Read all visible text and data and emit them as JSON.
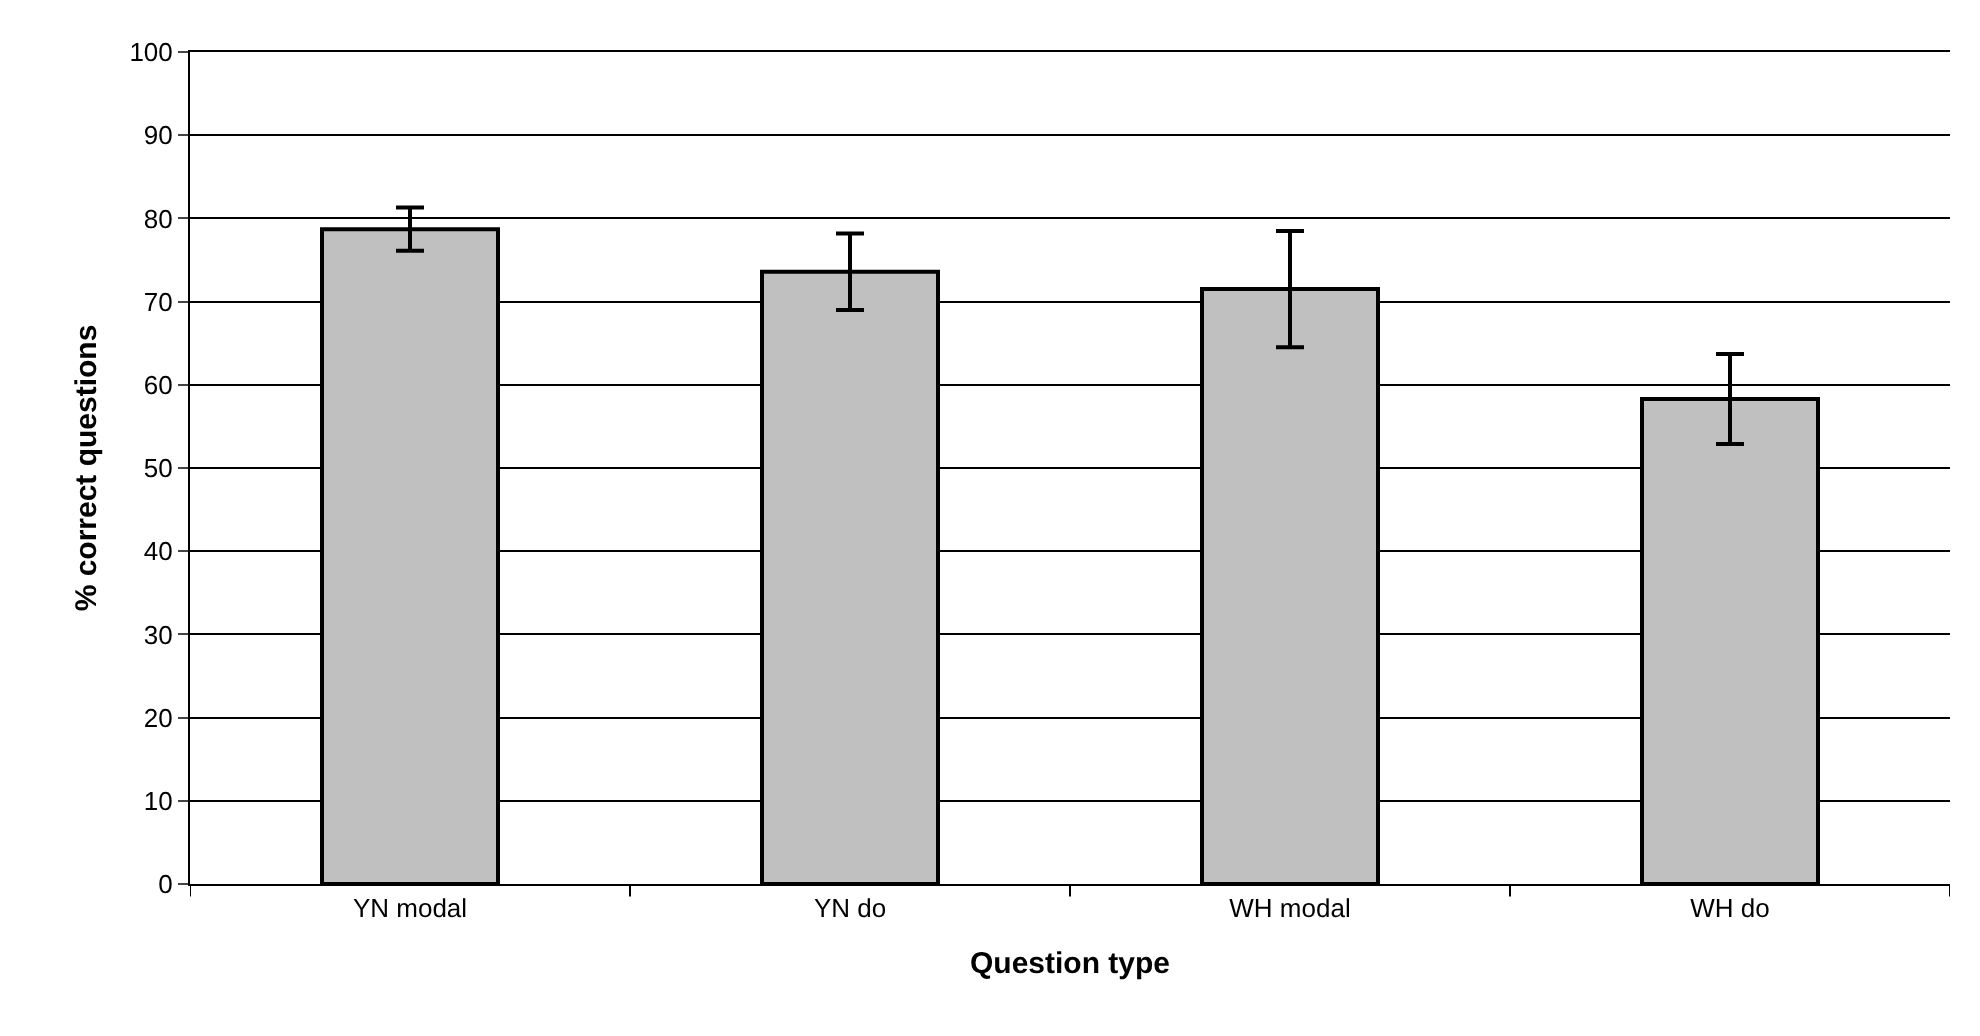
{
  "chart_data": {
    "type": "bar",
    "xlabel": "Question type",
    "ylabel": "% correct questions",
    "categories": [
      "YN modal",
      "YN do",
      "WH modal",
      "WH do"
    ],
    "values": [
      78.7,
      73.6,
      71.5,
      58.3
    ],
    "errors": [
      2.6,
      4.6,
      7,
      5.4
    ],
    "color": "#c0c0c0",
    "ylim": [
      0,
      100
    ],
    "yticks": [
      0,
      10,
      20,
      30,
      40,
      50,
      60,
      70,
      80,
      90,
      100
    ],
    "grid": "y"
  }
}
